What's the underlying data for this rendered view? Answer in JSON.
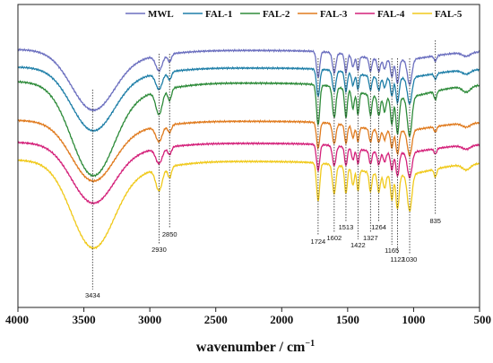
{
  "chart_data": {
    "type": "line",
    "xlabel": "wavenumber / cm",
    "xlabel_sup": "−1",
    "xlim": [
      4000,
      500
    ],
    "x_reversed": true,
    "y_axis": "no ticks or labels",
    "grid": false,
    "legend_position": "top",
    "xticks": [
      "4000",
      "3500",
      "3000",
      "2500",
      "2000",
      "1500",
      "1000",
      "500"
    ],
    "series": [
      {
        "name": "MWL",
        "color": "#6b6fbf",
        "offset": 0.0,
        "amp": 1.0
      },
      {
        "name": "FAL-1",
        "color": "#1f7fa8",
        "offset": 0.23,
        "amp": 1.05
      },
      {
        "name": "FAL-2",
        "color": "#2e8b3a",
        "offset": 0.42,
        "amp": 1.55
      },
      {
        "name": "FAL-3",
        "color": "#e07b1f",
        "offset": 0.93,
        "amp": 1.0
      },
      {
        "name": "FAL-4",
        "color": "#d4217a",
        "offset": 1.22,
        "amp": 1.0
      },
      {
        "name": "FAL-5",
        "color": "#f0c91b",
        "offset": 1.45,
        "amp": 1.45
      }
    ],
    "annotations": [
      {
        "label": "3434",
        "x": 3434
      },
      {
        "label": "2930",
        "x": 2930
      },
      {
        "label": "2850",
        "x": 2850
      },
      {
        "label": "1724",
        "x": 1724
      },
      {
        "label": "1602",
        "x": 1602
      },
      {
        "label": "1513",
        "x": 1513
      },
      {
        "label": "1422",
        "x": 1422
      },
      {
        "label": "1327",
        "x": 1327
      },
      {
        "label": "1264",
        "x": 1264
      },
      {
        "label": "1165",
        "x": 1165
      },
      {
        "label": "1122",
        "x": 1122
      },
      {
        "label": "1030",
        "x": 1030
      },
      {
        "label": "835",
        "x": 835
      }
    ]
  }
}
